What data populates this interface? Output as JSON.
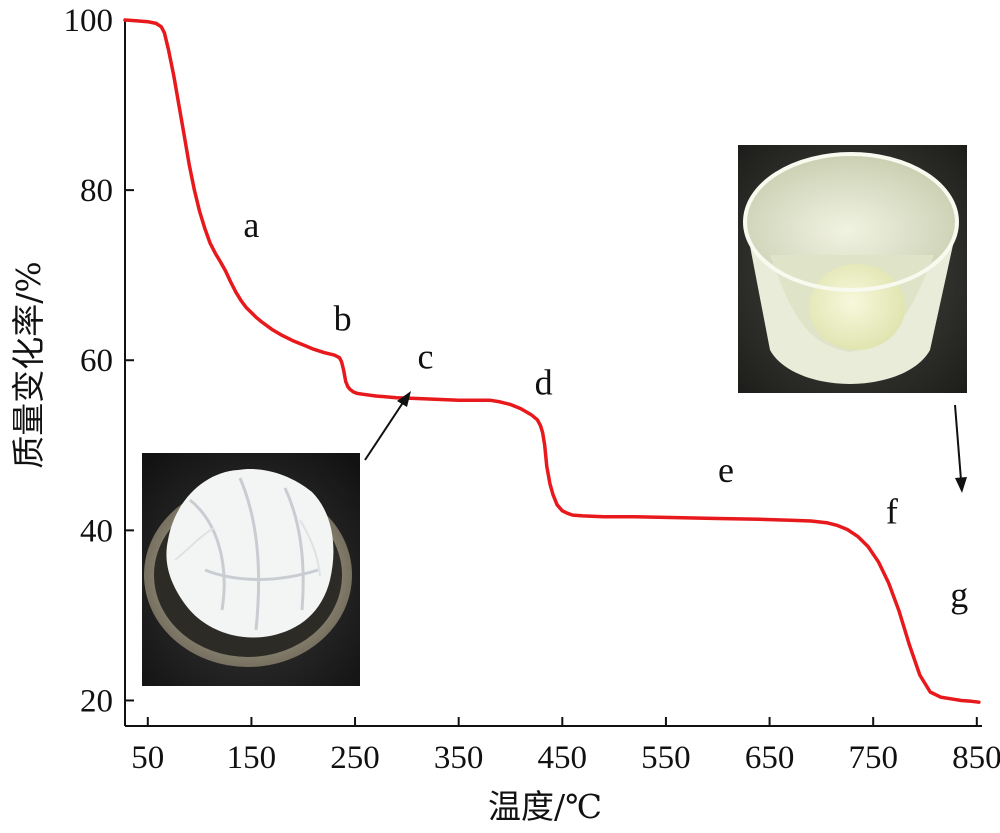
{
  "chart_data": {
    "type": "line",
    "xlabel": "温度/℃",
    "ylabel": "质量变化率/%",
    "xlim": [
      28,
      855
    ],
    "ylim": [
      17,
      100
    ],
    "xticks": [
      50,
      150,
      250,
      350,
      450,
      550,
      650,
      750,
      850
    ],
    "yticks": [
      20,
      40,
      60,
      80,
      100
    ],
    "grid": false,
    "series": [
      {
        "color": "#e8191c",
        "x": [
          28,
          40,
          50,
          58,
          63,
          66,
          70,
          75,
          80,
          85,
          90,
          95,
          100,
          105,
          110,
          115,
          120,
          125,
          130,
          135,
          140,
          145,
          150,
          155,
          160,
          170,
          180,
          190,
          200,
          210,
          220,
          230,
          235,
          237,
          239,
          241,
          243,
          245,
          248,
          252,
          258,
          270,
          290,
          310,
          330,
          350,
          370,
          380,
          390,
          400,
          410,
          420,
          426,
          429,
          431,
          433,
          435,
          438,
          441,
          445,
          450,
          455,
          460,
          470,
          490,
          520,
          560,
          600,
          640,
          670,
          690,
          705,
          715,
          725,
          735,
          745,
          755,
          765,
          775,
          785,
          795,
          805,
          815,
          825,
          835,
          845,
          852
        ],
        "y": [
          100,
          99.9,
          99.8,
          99.6,
          99.2,
          98.5,
          96.5,
          93.5,
          90,
          86.5,
          83,
          80,
          77.5,
          75.5,
          73.8,
          72.6,
          71.6,
          70.5,
          69.2,
          68,
          67,
          66.2,
          65.6,
          65,
          64.5,
          63.6,
          62.9,
          62.3,
          61.8,
          61.3,
          60.9,
          60.6,
          60.3,
          59.8,
          58.8,
          57.5,
          56.9,
          56.6,
          56.3,
          56.1,
          56,
          55.8,
          55.6,
          55.5,
          55.4,
          55.3,
          55.3,
          55.3,
          55.1,
          54.8,
          54.3,
          53.6,
          53,
          52.3,
          51.5,
          50,
          47.5,
          45.5,
          44.2,
          43,
          42.3,
          42,
          41.8,
          41.7,
          41.6,
          41.6,
          41.5,
          41.4,
          41.3,
          41.2,
          41.1,
          40.9,
          40.6,
          40.1,
          39.3,
          38.1,
          36.3,
          33.8,
          30.5,
          26.5,
          23,
          21,
          20.4,
          20.2,
          20,
          19.9,
          19.8
        ]
      }
    ],
    "annotations": [
      {
        "text": "a",
        "x": 150,
        "y": 74.5
      },
      {
        "text": "b",
        "x": 238,
        "y": 63.5
      },
      {
        "text": "c",
        "x": 318,
        "y": 59
      },
      {
        "text": "d",
        "x": 432,
        "y": 56
      },
      {
        "text": "e",
        "x": 608,
        "y": 45.7
      },
      {
        "text": "f",
        "x": 768,
        "y": 40.8
      },
      {
        "text": "g",
        "x": 833,
        "y": 31
      }
    ]
  },
  "insets": [
    {
      "icon": "photo-white-fluffy-powder-in-crucible"
    },
    {
      "icon": "photo-white-residue-in-crucible"
    }
  ]
}
